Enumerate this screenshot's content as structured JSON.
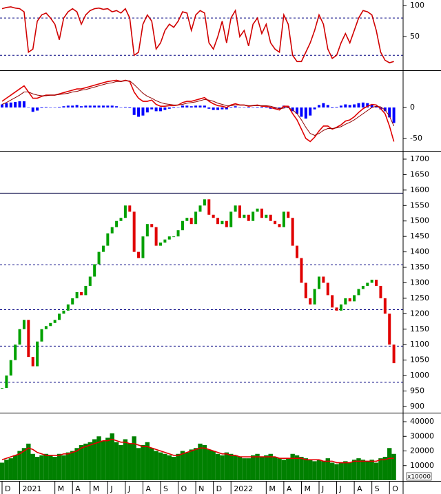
{
  "chart_data": [
    {
      "type": "line",
      "ylim": [
        -3,
        109
      ],
      "yticks": [
        50,
        100
      ],
      "levels": [
        {
          "value": 80,
          "style": "dashed"
        },
        {
          "value": 20,
          "style": "dashed"
        }
      ],
      "series": [
        {
          "type": "line",
          "color": "#d00000",
          "values": [
            95,
            97,
            98,
            96,
            95,
            90,
            25,
            30,
            75,
            85,
            88,
            80,
            70,
            45,
            80,
            90,
            95,
            90,
            70,
            85,
            92,
            95,
            96,
            94,
            95,
            90,
            92,
            88,
            95,
            80,
            20,
            25,
            70,
            85,
            75,
            30,
            40,
            60,
            70,
            65,
            75,
            90,
            88,
            60,
            85,
            92,
            88,
            40,
            30,
            50,
            75,
            40,
            80,
            92,
            50,
            60,
            35,
            70,
            80,
            55,
            70,
            40,
            30,
            25,
            85,
            70,
            20,
            10,
            10,
            25,
            40,
            60,
            85,
            70,
            30,
            15,
            20,
            40,
            55,
            40,
            60,
            80,
            92,
            90,
            85,
            60,
            25,
            12,
            8,
            10
          ]
        }
      ]
    },
    {
      "type": "line",
      "ylim": [
        -69,
        59
      ],
      "yticks": [
        -50,
        0
      ],
      "levels": [],
      "series": [
        {
          "type": "bar",
          "color": "#0000ff",
          "values": [
            5,
            7,
            8,
            9,
            10,
            10,
            0,
            -7,
            -5,
            -1,
            1,
            0,
            0,
            1,
            2,
            3,
            3,
            4,
            2,
            3,
            3,
            3,
            3,
            3,
            3,
            3,
            2,
            0,
            1,
            -1,
            -12,
            -15,
            -13,
            -8,
            -3,
            -6,
            -6,
            -4,
            -2,
            -1,
            0,
            3,
            3,
            2,
            3,
            3,
            3,
            -2,
            -4,
            -4,
            -3,
            -3,
            1,
            2,
            0,
            0,
            -1,
            0,
            1,
            -1,
            -1,
            -2,
            -2,
            -2,
            3,
            2,
            -6,
            -10,
            -15,
            -18,
            -13,
            -3,
            4,
            7,
            4,
            -1,
            1,
            3,
            5,
            4,
            5,
            7,
            8,
            7,
            5,
            2,
            -3,
            -6,
            -16,
            -25
          ]
        },
        {
          "type": "line",
          "color": "#e00000",
          "values": [
            10,
            15,
            20,
            25,
            30,
            35,
            25,
            15,
            15,
            18,
            20,
            20,
            20,
            22,
            24,
            26,
            28,
            30,
            30,
            32,
            34,
            36,
            38,
            40,
            42,
            43,
            44,
            42,
            44,
            42,
            25,
            15,
            10,
            10,
            12,
            5,
            2,
            2,
            3,
            3,
            4,
            8,
            10,
            10,
            12,
            14,
            16,
            10,
            6,
            3,
            2,
            0,
            4,
            6,
            4,
            4,
            2,
            3,
            4,
            2,
            2,
            0,
            -2,
            -4,
            2,
            2,
            -10,
            -20,
            -35,
            -50,
            -55,
            -48,
            -38,
            -30,
            -30,
            -35,
            -32,
            -28,
            -22,
            -20,
            -15,
            -8,
            -2,
            2,
            5,
            4,
            -2,
            -10,
            -30,
            -55
          ]
        },
        {
          "type": "line",
          "color": "#900000",
          "values": [
            5,
            8,
            12,
            16,
            20,
            25,
            25,
            22,
            20,
            19,
            19,
            20,
            20,
            21,
            22,
            23,
            25,
            26,
            28,
            29,
            31,
            33,
            35,
            37,
            39,
            40,
            42,
            42,
            43,
            43,
            37,
            30,
            23,
            18,
            15,
            11,
            8,
            6,
            5,
            4,
            4,
            5,
            7,
            8,
            9,
            11,
            13,
            12,
            10,
            7,
            5,
            3,
            3,
            4,
            4,
            4,
            3,
            3,
            3,
            3,
            3,
            2,
            0,
            -2,
            -1,
            0,
            -4,
            -10,
            -20,
            -32,
            -42,
            -45,
            -42,
            -37,
            -34,
            -34,
            -33,
            -31,
            -27,
            -24,
            -20,
            -15,
            -10,
            -5,
            0,
            2,
            1,
            -4,
            -14,
            -30
          ]
        }
      ]
    },
    {
      "type": "candlestick",
      "ylim": [
        882,
        1720
      ],
      "yticks": [
        900,
        950,
        1000,
        1050,
        1100,
        1150,
        1200,
        1250,
        1300,
        1350,
        1400,
        1450,
        1500,
        1550,
        1600,
        1650,
        1700
      ],
      "levels": [
        {
          "value": 1590,
          "style": "solid"
        },
        {
          "value": 1358,
          "style": "dashed"
        },
        {
          "value": 1213,
          "style": "dashed"
        },
        {
          "value": 1095,
          "style": "dashed"
        },
        {
          "value": 978,
          "style": "dashed"
        }
      ],
      "series": [
        {
          "type": "candlestick",
          "color": "#00a000",
          "down_color": "#e00000",
          "values": [
            960,
            1000,
            1050,
            1100,
            1150,
            1180,
            1060,
            1030,
            1110,
            1150,
            1160,
            1170,
            1180,
            1200,
            1210,
            1230,
            1250,
            1270,
            1260,
            1290,
            1320,
            1360,
            1400,
            1420,
            1460,
            1480,
            1500,
            1510,
            1550,
            1530,
            1400,
            1380,
            1450,
            1490,
            1480,
            1420,
            1430,
            1440,
            1450,
            1450,
            1470,
            1500,
            1510,
            1490,
            1530,
            1550,
            1570,
            1520,
            1510,
            1490,
            1500,
            1480,
            1530,
            1550,
            1510,
            1520,
            1500,
            1530,
            1540,
            1510,
            1520,
            1500,
            1490,
            1480,
            1530,
            1510,
            1420,
            1380,
            1300,
            1250,
            1230,
            1280,
            1320,
            1300,
            1260,
            1220,
            1210,
            1230,
            1250,
            1240,
            1260,
            1280,
            1290,
            1300,
            1310,
            1290,
            1250,
            1200,
            1100,
            1040
          ]
        }
      ]
    },
    {
      "type": "bar",
      "ylim": [
        0,
        45200
      ],
      "yticks": [
        10000,
        20000,
        30000,
        40000
      ],
      "unit_label": "x10000",
      "levels": [],
      "series": [
        {
          "type": "bar",
          "color": "#008000",
          "values": [
            12000,
            14000,
            15000,
            17000,
            20000,
            22000,
            25000,
            18000,
            16000,
            17000,
            18000,
            17000,
            16000,
            18000,
            17000,
            19000,
            20000,
            22000,
            24000,
            25000,
            26000,
            28000,
            30000,
            27000,
            29000,
            32000,
            26000,
            24000,
            28000,
            25000,
            30000,
            22000,
            24000,
            26000,
            22000,
            20000,
            19000,
            18000,
            17000,
            16000,
            18000,
            20000,
            19000,
            21000,
            22000,
            25000,
            24000,
            21000,
            20000,
            18000,
            17000,
            19000,
            18000,
            17000,
            16000,
            15000,
            15000,
            17000,
            18000,
            16000,
            17000,
            18000,
            16000,
            15000,
            14000,
            15000,
            18000,
            17000,
            16000,
            15000,
            14000,
            13000,
            14000,
            13000,
            15000,
            12000,
            11000,
            12000,
            13000,
            12000,
            14000,
            15000,
            14000,
            13000,
            14000,
            12000,
            15000,
            16000,
            22000,
            18000
          ]
        },
        {
          "type": "line",
          "color": "#e00000",
          "values": [
            14000,
            15000,
            16000,
            17000,
            18000,
            20000,
            22000,
            21000,
            19000,
            18000,
            17000,
            17000,
            17000,
            17000,
            18000,
            18000,
            19000,
            20000,
            22000,
            23000,
            24000,
            25000,
            26000,
            27000,
            27000,
            28000,
            27000,
            26000,
            26000,
            25000,
            25000,
            24000,
            23000,
            23000,
            22000,
            21000,
            20000,
            19000,
            18000,
            17000,
            17000,
            18000,
            19000,
            20000,
            21000,
            22000,
            22000,
            21000,
            20000,
            19000,
            18000,
            18000,
            17000,
            17000,
            16000,
            16000,
            16000,
            16000,
            16000,
            16000,
            16000,
            16000,
            16000,
            15000,
            15000,
            15000,
            15000,
            15000,
            15000,
            14000,
            14000,
            14000,
            14000,
            13000,
            13000,
            13000,
            12000,
            12000,
            12000,
            12000,
            13000,
            13000,
            13000,
            13000,
            13000,
            13000,
            14000,
            14000,
            15000,
            15000
          ]
        }
      ]
    }
  ],
  "x_axis": {
    "labels": [
      "D",
      "2021",
      "M",
      "A",
      "M",
      "J",
      "J",
      "A",
      "S",
      "O",
      "N",
      "D",
      "2022",
      "M",
      "A",
      "M",
      "J",
      "J",
      "A",
      "S",
      "O"
    ]
  }
}
